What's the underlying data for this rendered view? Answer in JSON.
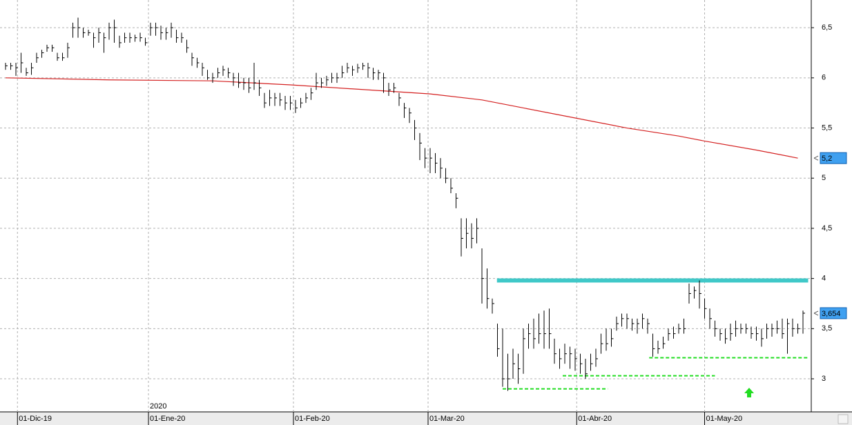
{
  "chart_data": {
    "type": "ohlc",
    "xlim": [
      -1.07,
      155.6
    ],
    "ylim": [
      2.677,
      6.776
    ],
    "yticks": [
      {
        "value": 3,
        "label": "3"
      },
      {
        "value": 3.5,
        "label": "3,5"
      },
      {
        "value": 4,
        "label": "4"
      },
      {
        "value": 4.5,
        "label": "4,5"
      },
      {
        "value": 5,
        "label": "5"
      },
      {
        "value": 5.5,
        "label": "5,5"
      },
      {
        "value": 6,
        "label": "6"
      },
      {
        "value": 6.5,
        "label": "6,5"
      }
    ],
    "xticks": [
      {
        "value": 2.3,
        "label": "01-Dic-19"
      },
      {
        "value": 27.6,
        "label": "01-Ene-20"
      },
      {
        "value": 55.6,
        "label": "01-Feb-20"
      },
      {
        "value": 81.6,
        "label": "01-Mar-20"
      },
      {
        "value": 110.3,
        "label": "01-Abr-20"
      },
      {
        "value": 135,
        "label": "01-May-20"
      }
    ],
    "year_label": "2020",
    "grid": true,
    "bar_color": "#000000",
    "high": [
      6.15,
      6.15,
      6.15,
      6.25,
      6.1,
      6.15,
      6.25,
      6.28,
      6.33,
      6.33,
      6.25,
      6.25,
      6.35,
      6.55,
      6.6,
      6.5,
      6.48,
      6.45,
      6.5,
      6.45,
      6.55,
      6.58,
      6.42,
      6.45,
      6.45,
      6.43,
      6.45,
      6.4,
      6.55,
      6.55,
      6.52,
      6.5,
      6.55,
      6.48,
      6.45,
      6.38,
      6.25,
      6.2,
      6.15,
      6.08,
      6.05,
      6.1,
      6.12,
      6.1,
      6.05,
      6.05,
      6.0,
      6.0,
      6.15,
      5.98,
      5.85,
      5.88,
      5.85,
      5.85,
      5.82,
      5.82,
      5.78,
      5.8,
      5.85,
      5.9,
      6.05,
      6.0,
      6.02,
      6.05,
      6.05,
      6.12,
      6.15,
      6.12,
      6.14,
      6.15,
      6.15,
      6.1,
      6.08,
      6.05,
      5.95,
      5.95,
      5.85,
      5.75,
      5.7,
      5.58,
      5.45,
      5.3,
      5.3,
      5.25,
      5.2,
      5.1,
      5.0,
      4.85,
      4.6,
      4.6,
      4.55,
      4.6,
      4.3,
      4.1,
      3.8,
      3.55,
      3.5,
      3.25,
      3.3,
      3.25,
      3.5,
      3.55,
      3.6,
      3.65,
      3.68,
      3.7,
      3.4,
      3.3,
      3.35,
      3.32,
      3.3,
      3.25,
      3.2,
      3.25,
      3.3,
      3.45,
      3.5,
      3.5,
      3.62,
      3.65,
      3.65,
      3.6,
      3.6,
      3.65,
      3.6,
      3.45,
      3.38,
      3.42,
      3.5,
      3.52,
      3.55,
      3.6,
      3.95,
      3.92,
      3.98,
      3.8,
      3.7,
      3.58,
      3.5,
      3.5,
      3.55,
      3.58,
      3.55,
      3.55,
      3.52,
      3.52,
      3.5,
      3.55,
      3.55,
      3.58,
      3.6,
      3.6,
      3.6,
      3.55,
      3.68
    ],
    "low": [
      6.08,
      6.08,
      6.02,
      6.05,
      6.02,
      6.03,
      6.15,
      6.2,
      6.26,
      6.26,
      6.17,
      6.17,
      6.2,
      6.4,
      6.4,
      6.4,
      6.42,
      6.3,
      6.35,
      6.25,
      6.38,
      6.35,
      6.3,
      6.35,
      6.35,
      6.36,
      6.36,
      6.32,
      6.42,
      6.42,
      6.38,
      6.38,
      6.4,
      6.35,
      6.35,
      6.25,
      6.12,
      6.1,
      6.02,
      5.98,
      5.95,
      6.0,
      6.02,
      6.0,
      5.92,
      5.9,
      5.88,
      5.85,
      5.88,
      5.82,
      5.7,
      5.72,
      5.72,
      5.72,
      5.68,
      5.68,
      5.65,
      5.7,
      5.75,
      5.78,
      5.88,
      5.9,
      5.92,
      5.95,
      5.95,
      6.0,
      6.05,
      6.02,
      6.05,
      6.08,
      6.0,
      5.98,
      5.98,
      5.85,
      5.82,
      5.85,
      5.72,
      5.6,
      5.55,
      5.38,
      5.18,
      5.1,
      5.05,
      5.05,
      5.0,
      4.95,
      4.85,
      4.7,
      4.22,
      4.3,
      4.3,
      4.35,
      3.75,
      3.7,
      3.65,
      3.22,
      2.92,
      2.88,
      3.0,
      2.95,
      3.05,
      3.3,
      3.3,
      3.35,
      3.3,
      3.3,
      3.15,
      3.1,
      3.15,
      3.1,
      3.08,
      3.05,
      3.0,
      3.08,
      3.12,
      3.25,
      3.28,
      3.32,
      3.48,
      3.52,
      3.5,
      3.48,
      3.45,
      3.5,
      3.45,
      3.22,
      3.25,
      3.3,
      3.38,
      3.4,
      3.45,
      3.45,
      3.75,
      3.8,
      3.7,
      3.6,
      3.5,
      3.42,
      3.38,
      3.35,
      3.38,
      3.42,
      3.45,
      3.45,
      3.4,
      3.38,
      3.32,
      3.4,
      3.42,
      3.45,
      3.4,
      3.25,
      3.42,
      3.45,
      3.45
    ],
    "close": [
      6.12,
      6.12,
      6.1,
      6.15,
      6.05,
      6.1,
      6.2,
      6.25,
      6.3,
      6.3,
      6.2,
      6.2,
      6.3,
      6.5,
      6.5,
      6.45,
      6.45,
      6.4,
      6.45,
      6.4,
      6.5,
      6.5,
      6.35,
      6.4,
      6.4,
      6.4,
      6.4,
      6.35,
      6.5,
      6.5,
      6.45,
      6.45,
      6.5,
      6.4,
      6.4,
      6.3,
      6.2,
      6.15,
      6.1,
      6.0,
      6.0,
      6.05,
      6.08,
      6.05,
      6.0,
      5.95,
      5.95,
      5.9,
      5.95,
      5.9,
      5.75,
      5.8,
      5.8,
      5.78,
      5.75,
      5.75,
      5.7,
      5.75,
      5.8,
      5.85,
      5.95,
      5.95,
      5.98,
      6.0,
      6.0,
      6.05,
      6.1,
      6.08,
      6.1,
      6.12,
      6.1,
      6.05,
      6.05,
      6.0,
      5.88,
      5.9,
      5.8,
      5.7,
      5.65,
      5.5,
      5.35,
      5.2,
      5.2,
      5.15,
      5.1,
      5.0,
      4.9,
      4.8,
      4.4,
      4.45,
      4.4,
      4.5,
      4.0,
      3.8,
      3.75,
      3.3,
      3.0,
      3.0,
      3.15,
      3.1,
      3.4,
      3.45,
      3.4,
      3.45,
      3.45,
      3.45,
      3.25,
      3.2,
      3.25,
      3.25,
      3.2,
      3.15,
      3.05,
      3.15,
      3.2,
      3.35,
      3.35,
      3.4,
      3.55,
      3.6,
      3.6,
      3.55,
      3.55,
      3.6,
      3.55,
      3.3,
      3.3,
      3.35,
      3.45,
      3.45,
      3.5,
      3.5,
      3.85,
      3.88,
      3.85,
      3.7,
      3.6,
      3.5,
      3.45,
      3.4,
      3.45,
      3.5,
      3.5,
      3.5,
      3.45,
      3.45,
      3.4,
      3.5,
      3.5,
      3.5,
      3.45,
      3.55,
      3.5,
      3.5,
      3.654
    ],
    "moving_average": {
      "color": "#d42020",
      "x": [
        0,
        20,
        40,
        55,
        70,
        82,
        92,
        100,
        110,
        120,
        130,
        135,
        145,
        153
      ],
      "values": [
        6.0,
        5.98,
        5.97,
        5.93,
        5.88,
        5.84,
        5.78,
        5.7,
        5.6,
        5.5,
        5.42,
        5.37,
        5.28,
        5.2
      ]
    },
    "levels": [
      {
        "value": 3.98,
        "x": [
          94.9,
          155
        ],
        "color": "#40c8c8",
        "style": "solid"
      },
      {
        "value": 2.9,
        "x": [
          96,
          116.3
        ],
        "color": "#22dd22",
        "style": "dashed"
      },
      {
        "value": 3.03,
        "x": [
          107.6,
          137
        ],
        "color": "#22dd22",
        "style": "dashed"
      },
      {
        "value": 3.21,
        "x": [
          124.3,
          155
        ],
        "color": "#22dd22",
        "style": "dashed"
      }
    ],
    "last_labels": [
      {
        "value": 5.2,
        "label": "5,2"
      },
      {
        "value": 3.654,
        "label": "3,654"
      }
    ],
    "label_color": "#3fa0f0"
  }
}
